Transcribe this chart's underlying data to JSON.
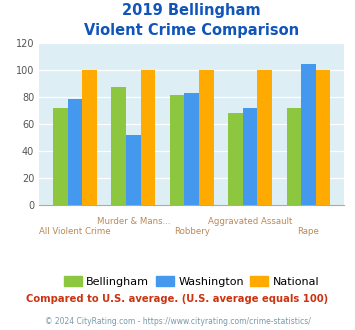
{
  "title_line1": "2019 Bellingham",
  "title_line2": "Violent Crime Comparison",
  "categories": [
    "All Violent Crime",
    "Murder & Mans...",
    "Robbery",
    "Aggravated Assault",
    "Rape"
  ],
  "bellingham": [
    72,
    87,
    81,
    68,
    72
  ],
  "washington": [
    78,
    52,
    83,
    72,
    104
  ],
  "national": [
    100,
    100,
    100,
    100,
    100
  ],
  "color_bellingham": "#8dc63f",
  "color_washington": "#4499ee",
  "color_national": "#ffaa00",
  "ylim": [
    0,
    120
  ],
  "yticks": [
    0,
    20,
    40,
    60,
    80,
    100,
    120
  ],
  "footnote": "Compared to U.S. average. (U.S. average equals 100)",
  "copyright": "© 2024 CityRating.com - https://www.cityrating.com/crime-statistics/",
  "background_color": "#ddeef5",
  "title_color": "#1155bb",
  "xlabel_top_color": "#bb8855",
  "xlabel_bot_color": "#bb8855",
  "footnote_color": "#cc3311",
  "copyright_color": "#7799aa",
  "top_labels": [
    "",
    "Murder & Mans...",
    "",
    "Aggravated Assault",
    ""
  ],
  "bot_labels": [
    "All Violent Crime",
    "",
    "Robbery",
    "",
    "Rape"
  ]
}
